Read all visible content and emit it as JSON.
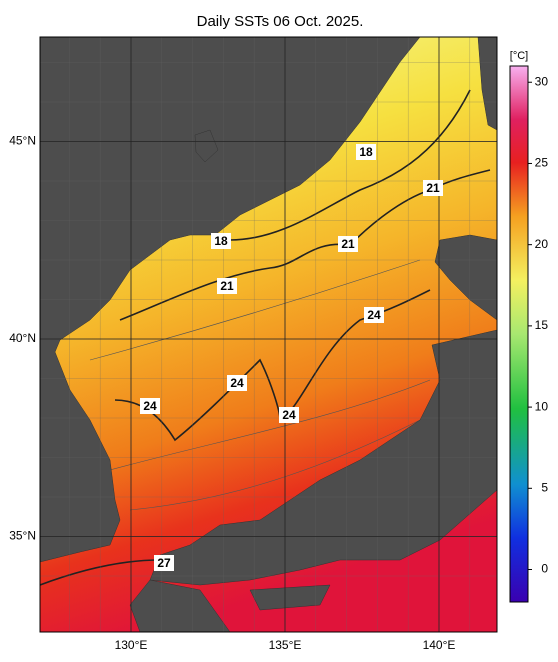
{
  "title": "Daily SSTs 06 Oct. 2025.",
  "lon_labels": [
    {
      "value": 130,
      "label": "130°E"
    },
    {
      "value": 135,
      "label": "135°E"
    },
    {
      "value": 140,
      "label": "140°E"
    }
  ],
  "lat_labels": [
    {
      "value": 45,
      "label": "45°N"
    },
    {
      "value": 40,
      "label": "40°N"
    },
    {
      "value": 35,
      "label": "35°N"
    }
  ],
  "colorbar": {
    "label": "[°C]",
    "lim": [
      -2,
      31
    ],
    "ticks": [
      0,
      5,
      10,
      15,
      20,
      25,
      30
    ]
  },
  "contour_labels": [
    18,
    21,
    18,
    21,
    21,
    24,
    24,
    24,
    24,
    27
  ]
}
